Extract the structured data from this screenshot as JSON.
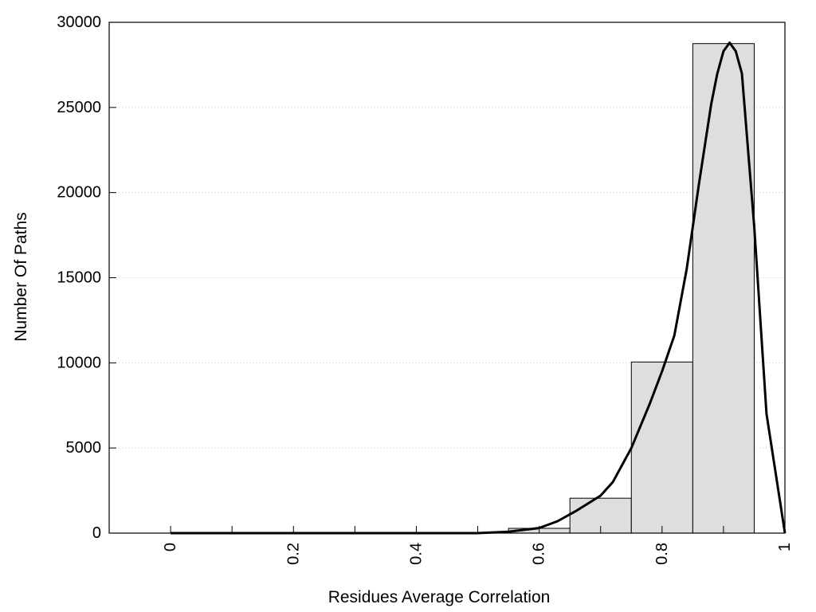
{
  "chart_data": {
    "type": "bar",
    "title": "",
    "xlabel": "Residues Average Correlation",
    "ylabel": "Number Of Paths",
    "xlim": [
      -0.1,
      1.0
    ],
    "ylim": [
      0,
      30000
    ],
    "x_ticks": [
      0,
      0.1,
      0.2,
      0.3,
      0.4,
      0.5,
      0.6,
      0.7,
      0.8,
      0.9,
      1
    ],
    "x_tick_labels": [
      {
        "value": 0,
        "label": "0"
      },
      {
        "value": 0.2,
        "label": "0.2"
      },
      {
        "value": 0.4,
        "label": "0.4"
      },
      {
        "value": 0.6,
        "label": "0.6"
      },
      {
        "value": 0.8,
        "label": "0.8"
      },
      {
        "value": 1,
        "label": "1"
      }
    ],
    "y_tick_labels": [
      {
        "value": 0,
        "label": "0"
      },
      {
        "value": 5000,
        "label": "5000"
      },
      {
        "value": 10000,
        "label": "10000"
      },
      {
        "value": 15000,
        "label": "15000"
      },
      {
        "value": 20000,
        "label": "20000"
      },
      {
        "value": 25000,
        "label": "25000"
      },
      {
        "value": 30000,
        "label": "30000"
      }
    ],
    "grid": {
      "y": true,
      "style": "dotted"
    },
    "bin_width": 0.1,
    "bins": [
      {
        "center": 0.0,
        "value": 0
      },
      {
        "center": 0.1,
        "value": 0
      },
      {
        "center": 0.2,
        "value": 0
      },
      {
        "center": 0.3,
        "value": 0
      },
      {
        "center": 0.4,
        "value": 0
      },
      {
        "center": 0.5,
        "value": 10
      },
      {
        "center": 0.6,
        "value": 280
      },
      {
        "center": 0.7,
        "value": 2050
      },
      {
        "center": 0.8,
        "value": 10050
      },
      {
        "center": 0.9,
        "value": 28750
      }
    ],
    "fit_curve": {
      "x": [
        0,
        0.1,
        0.2,
        0.3,
        0.4,
        0.5,
        0.55,
        0.6,
        0.63,
        0.66,
        0.7,
        0.72,
        0.75,
        0.78,
        0.8,
        0.82,
        0.84,
        0.86,
        0.88,
        0.89,
        0.9,
        0.91,
        0.92,
        0.93,
        0.95,
        0.97,
        1.0
      ],
      "y": [
        0,
        0,
        0,
        0,
        0,
        0,
        80,
        300,
        700,
        1300,
        2200,
        3000,
        5000,
        7600,
        9500,
        11600,
        15500,
        20500,
        25200,
        27000,
        28300,
        28800,
        28300,
        27000,
        18000,
        7000,
        0
      ]
    },
    "colors": {
      "bar_fill": "#dedede",
      "bar_stroke": "#000000",
      "curve": "#000000",
      "grid": "#c8c8c8"
    }
  }
}
